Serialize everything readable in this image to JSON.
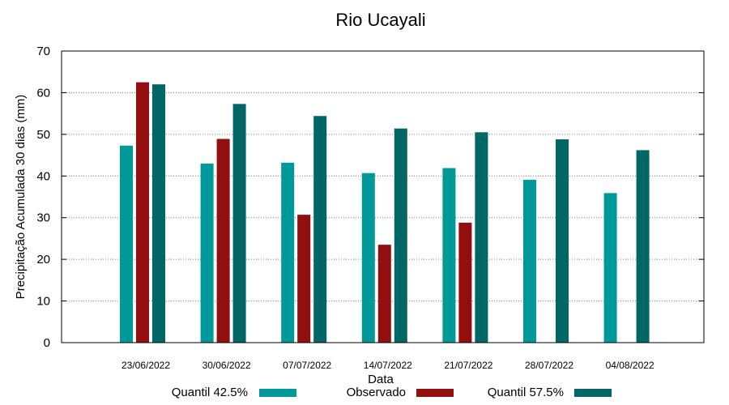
{
  "chart_data": {
    "type": "bar",
    "title": "Rio Ucayali",
    "xlabel": "Data",
    "ylabel": "Precipitação Acumulada 30 dias (mm)",
    "ylim": [
      0,
      70
    ],
    "yticks": [
      0,
      10,
      20,
      30,
      40,
      50,
      60,
      70
    ],
    "grid": true,
    "legend_position": "bottom",
    "categories": [
      "23/06/2022",
      "30/06/2022",
      "07/07/2022",
      "14/07/2022",
      "21/07/2022",
      "28/07/2022",
      "04/08/2022"
    ],
    "series": [
      {
        "name": "Quantil 42.5%",
        "color": "#009999",
        "values": [
          47.3,
          43.0,
          43.2,
          40.7,
          41.9,
          39.1,
          35.9
        ]
      },
      {
        "name": "Observado",
        "color": "#930E0E",
        "values": [
          62.5,
          48.9,
          30.7,
          23.5,
          28.8,
          null,
          null
        ]
      },
      {
        "name": "Quantil 57.5%",
        "color": "#006666",
        "values": [
          62.0,
          57.3,
          54.4,
          51.4,
          50.5,
          48.8,
          46.2
        ]
      }
    ]
  }
}
